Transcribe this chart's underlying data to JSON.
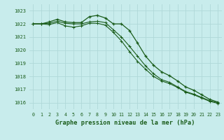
{
  "title": "Graphe pression niveau de la mer (hPa)",
  "background_color": "#c8ecec",
  "grid_color": "#b0d8d8",
  "line_color": "#1a5c1a",
  "text_color": "#1a5c1a",
  "hours": [
    0,
    1,
    2,
    3,
    4,
    5,
    6,
    7,
    8,
    9,
    10,
    11,
    12,
    13,
    14,
    15,
    16,
    17,
    18,
    19,
    20,
    21,
    22,
    23
  ],
  "series1": [
    1022.0,
    1022.0,
    1022.15,
    1022.35,
    1022.15,
    1022.1,
    1022.1,
    1022.55,
    1022.65,
    1022.45,
    1022.0,
    1022.0,
    1021.5,
    1020.55,
    1019.55,
    1018.85,
    1018.35,
    1018.05,
    1017.65,
    1017.2,
    1016.95,
    1016.6,
    1016.25,
    1016.05
  ],
  "series2": [
    1022.0,
    1022.0,
    1022.05,
    1022.2,
    1022.05,
    1022.0,
    1022.0,
    1022.15,
    1022.2,
    1022.1,
    1021.55,
    1021.0,
    1020.3,
    1019.55,
    1018.8,
    1018.2,
    1017.75,
    1017.55,
    1017.2,
    1016.85,
    1016.65,
    1016.4,
    1016.15,
    1016.0
  ],
  "series3": [
    1022.0,
    1022.0,
    1021.95,
    1022.1,
    1021.85,
    1021.75,
    1021.85,
    1022.05,
    1022.05,
    1021.9,
    1021.35,
    1020.7,
    1019.9,
    1019.15,
    1018.55,
    1018.0,
    1017.65,
    1017.45,
    1017.15,
    1016.8,
    1016.6,
    1016.35,
    1016.1,
    1015.95
  ],
  "ylim": [
    1015.5,
    1023.5
  ],
  "yticks": [
    1016,
    1017,
    1018,
    1019,
    1020,
    1021,
    1022,
    1023
  ],
  "xticks": [
    0,
    1,
    2,
    3,
    4,
    5,
    6,
    7,
    8,
    9,
    10,
    11,
    12,
    13,
    14,
    15,
    16,
    17,
    18,
    19,
    20,
    21,
    22,
    23
  ],
  "figsize": [
    3.2,
    2.0
  ],
  "dpi": 100
}
